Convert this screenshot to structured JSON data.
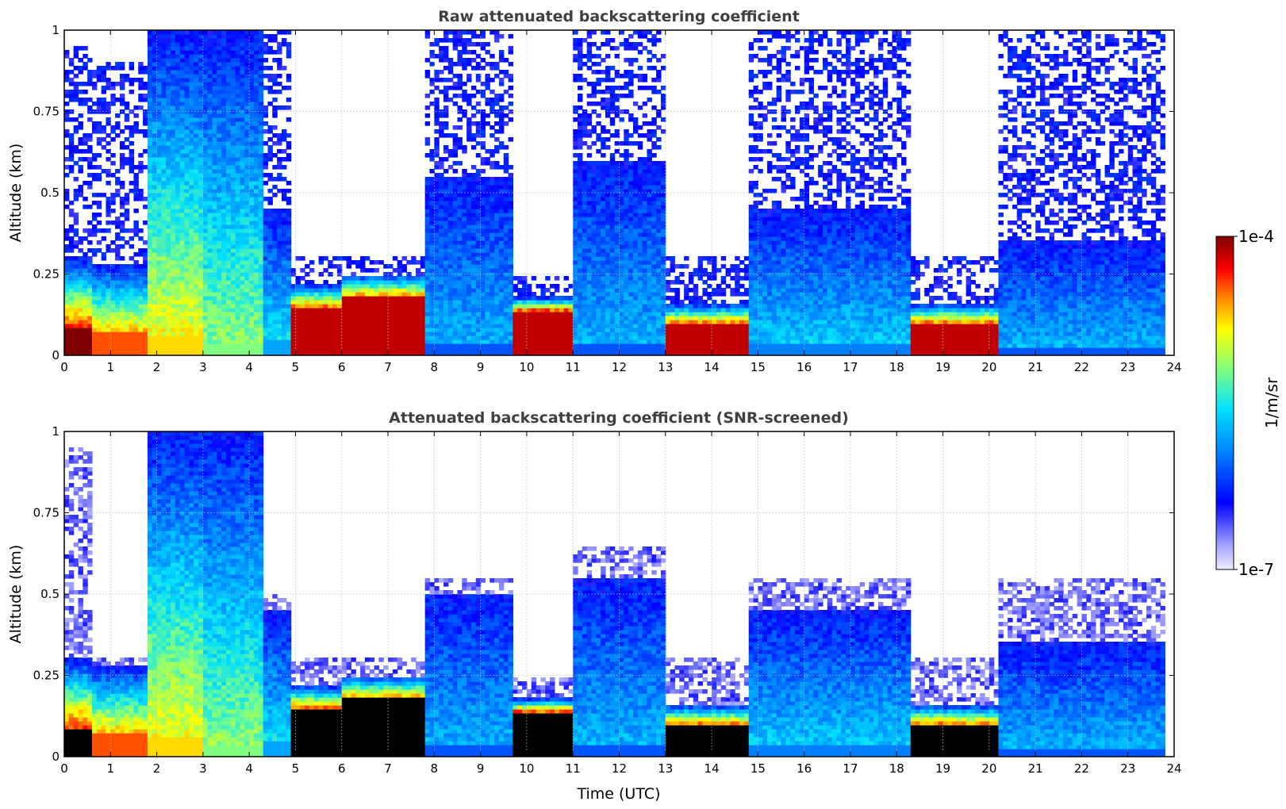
{
  "chart_data": [
    {
      "type": "heatmap",
      "title": "Raw attenuated backscattering coefficient",
      "xlabel": "",
      "ylabel": "Altitude (km)",
      "xlim": [
        0,
        24
      ],
      "ylim": [
        0,
        1
      ],
      "xticks": [
        "0",
        "1",
        "2",
        "3",
        "4",
        "5",
        "6",
        "7",
        "8",
        "9",
        "10",
        "11",
        "12",
        "13",
        "14",
        "15",
        "16",
        "17",
        "18",
        "19",
        "20",
        "21",
        "22",
        "23",
        "24"
      ],
      "yticks": [
        "0",
        "0.25",
        "0.5",
        "0.75",
        "1"
      ],
      "grid": true,
      "colormap": "jet",
      "segments": [
        {
          "t0": 0.0,
          "t1": 0.6,
          "base": 0.09,
          "top": 0.3,
          "noise_top": 0.95,
          "level": 1.0
        },
        {
          "t0": 0.6,
          "t1": 1.8,
          "base": 0.07,
          "top": 0.28,
          "noise_top": 0.9,
          "level": 0.85
        },
        {
          "t0": 1.8,
          "t1": 3.0,
          "base": 0.06,
          "top": 1.0,
          "noise_top": 1.0,
          "level": 0.75
        },
        {
          "t0": 3.0,
          "t1": 4.3,
          "base": 0.04,
          "top": 1.0,
          "noise_top": 1.0,
          "level": 0.6
        },
        {
          "t0": 4.3,
          "t1": 4.9,
          "base": 0.05,
          "top": 0.45,
          "noise_top": 1.0,
          "level": 0.4
        },
        {
          "t0": 4.9,
          "t1": 6.0,
          "base": 0.15,
          "top": 0.22,
          "noise_top": 0.3,
          "level": 0.95
        },
        {
          "t0": 6.0,
          "t1": 7.8,
          "base": 0.18,
          "top": 0.25,
          "noise_top": 0.3,
          "level": 0.95
        },
        {
          "t0": 7.8,
          "t1": 9.7,
          "base": 0.04,
          "top": 0.55,
          "noise_top": 1.0,
          "level": 0.3
        },
        {
          "t0": 9.7,
          "t1": 11.0,
          "base": 0.14,
          "top": 0.18,
          "noise_top": 0.25,
          "level": 0.95
        },
        {
          "t0": 11.0,
          "t1": 13.0,
          "base": 0.04,
          "top": 0.6,
          "noise_top": 1.0,
          "level": 0.3
        },
        {
          "t0": 13.0,
          "t1": 14.8,
          "base": 0.1,
          "top": 0.16,
          "noise_top": 0.3,
          "level": 0.95
        },
        {
          "t0": 14.8,
          "t1": 18.3,
          "base": 0.04,
          "top": 0.45,
          "noise_top": 1.0,
          "level": 0.35
        },
        {
          "t0": 18.3,
          "t1": 20.2,
          "base": 0.1,
          "top": 0.16,
          "noise_top": 0.3,
          "level": 0.95
        },
        {
          "t0": 20.2,
          "t1": 23.8,
          "base": 0.03,
          "top": 0.35,
          "noise_top": 1.0,
          "level": 0.3
        }
      ]
    },
    {
      "type": "heatmap",
      "title": "Attenuated backscattering coefficient (SNR-screened)",
      "xlabel": "Time (UTC)",
      "ylabel": "Altitude (km)",
      "xlim": [
        0,
        24
      ],
      "ylim": [
        0,
        1
      ],
      "xticks": [
        "0",
        "1",
        "2",
        "3",
        "4",
        "5",
        "6",
        "7",
        "8",
        "9",
        "10",
        "11",
        "12",
        "13",
        "14",
        "15",
        "16",
        "17",
        "18",
        "19",
        "20",
        "21",
        "22",
        "23",
        "24"
      ],
      "yticks": [
        "0",
        "0.25",
        "0.5",
        "0.75",
        "1"
      ],
      "grid": true,
      "colormap": "jet",
      "screened_color": "#000000",
      "segments": [
        {
          "t0": 0.0,
          "t1": 0.6,
          "base": 0.09,
          "top": 0.3,
          "noise_top": 0.95,
          "level": 1.0
        },
        {
          "t0": 0.6,
          "t1": 1.8,
          "base": 0.07,
          "top": 0.28,
          "noise_top": 0.3,
          "level": 0.85
        },
        {
          "t0": 1.8,
          "t1": 3.0,
          "base": 0.06,
          "top": 1.0,
          "noise_top": 1.0,
          "level": 0.75
        },
        {
          "t0": 3.0,
          "t1": 4.3,
          "base": 0.04,
          "top": 1.0,
          "noise_top": 1.0,
          "level": 0.6
        },
        {
          "t0": 4.3,
          "t1": 4.9,
          "base": 0.05,
          "top": 0.45,
          "noise_top": 0.5,
          "level": 0.4
        },
        {
          "t0": 4.9,
          "t1": 6.0,
          "base": 0.15,
          "top": 0.22,
          "noise_top": 0.3,
          "level": 0.95
        },
        {
          "t0": 6.0,
          "t1": 7.8,
          "base": 0.18,
          "top": 0.25,
          "noise_top": 0.3,
          "level": 0.95
        },
        {
          "t0": 7.8,
          "t1": 9.7,
          "base": 0.04,
          "top": 0.5,
          "noise_top": 0.55,
          "level": 0.3
        },
        {
          "t0": 9.7,
          "t1": 11.0,
          "base": 0.14,
          "top": 0.18,
          "noise_top": 0.25,
          "level": 0.95
        },
        {
          "t0": 11.0,
          "t1": 13.0,
          "base": 0.04,
          "top": 0.55,
          "noise_top": 0.65,
          "level": 0.3
        },
        {
          "t0": 13.0,
          "t1": 14.8,
          "base": 0.1,
          "top": 0.16,
          "noise_top": 0.3,
          "level": 0.95
        },
        {
          "t0": 14.8,
          "t1": 18.3,
          "base": 0.04,
          "top": 0.45,
          "noise_top": 0.55,
          "level": 0.35
        },
        {
          "t0": 18.3,
          "t1": 20.2,
          "base": 0.1,
          "top": 0.16,
          "noise_top": 0.3,
          "level": 0.95
        },
        {
          "t0": 20.2,
          "t1": 23.8,
          "base": 0.03,
          "top": 0.35,
          "noise_top": 0.55,
          "level": 0.3
        }
      ]
    }
  ],
  "colorbar": {
    "label": "1/m/sr",
    "max_label": "1e-4",
    "min_label": "1e-7",
    "min_color": "#e8e8ff",
    "max_color": "#800000"
  }
}
